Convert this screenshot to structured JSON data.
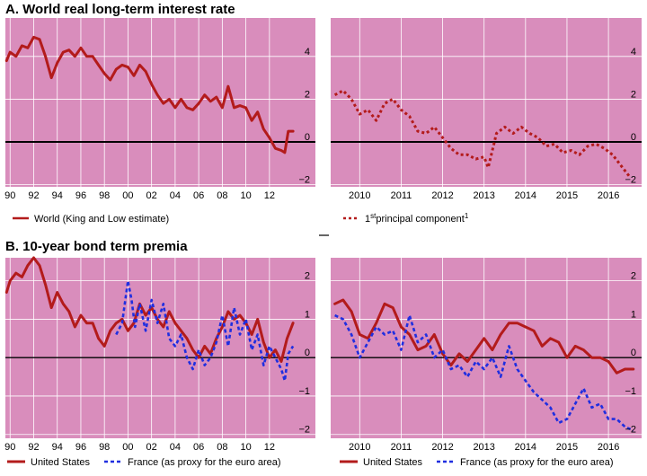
{
  "panel_a": {
    "title": "A. World real long-term interest rate"
  },
  "panel_b": {
    "title": "B. 10-year bond term premia"
  },
  "colors": {
    "plot_bg": "#d98dbc",
    "us_red": "#b31b1b",
    "france_blue": "#1f2ee0",
    "axis": "#000000"
  },
  "chart_data": [
    {
      "type": "line",
      "title": "A. World real long-term interest rate",
      "x_tick_labels": [
        "90",
        "92",
        "94",
        "96",
        "98",
        "00",
        "02",
        "04",
        "06",
        "08",
        "10",
        "12"
      ],
      "x_range": [
        1989.6,
        2015.9
      ],
      "y_tick_labels": [
        "4",
        "2",
        "0",
        "−2"
      ],
      "ylim": [
        -2.1,
        5.8
      ],
      "series": [
        {
          "name": "World (King and Low estimate)",
          "style": "solid",
          "x": [
            1989.7,
            1990.0,
            1990.5,
            1991.0,
            1991.5,
            1992.0,
            1992.5,
            1993.0,
            1993.5,
            1994.0,
            1994.5,
            1995.0,
            1995.5,
            1996.0,
            1996.5,
            1997.0,
            1997.5,
            1998.0,
            1998.5,
            1999.0,
            1999.5,
            2000.0,
            2000.5,
            2001.0,
            2001.5,
            2002.0,
            2002.5,
            2003.0,
            2003.5,
            2004.0,
            2004.5,
            2005.0,
            2005.5,
            2006.0,
            2006.5,
            2007.0,
            2007.5,
            2008.0,
            2008.5,
            2009.0,
            2009.5,
            2010.0,
            2010.5,
            2011.0,
            2011.5,
            2012.0,
            2012.5,
            2013.0,
            2013.3,
            2013.6,
            2014.0
          ],
          "y": [
            3.8,
            4.2,
            4.0,
            4.5,
            4.4,
            4.9,
            4.8,
            4.0,
            3.0,
            3.7,
            4.2,
            4.3,
            4.0,
            4.4,
            4.0,
            4.0,
            3.6,
            3.2,
            2.9,
            3.4,
            3.6,
            3.5,
            3.1,
            3.6,
            3.3,
            2.7,
            2.2,
            1.8,
            2.0,
            1.6,
            2.0,
            1.6,
            1.5,
            1.8,
            2.2,
            1.9,
            2.1,
            1.6,
            2.6,
            1.6,
            1.7,
            1.6,
            1.0,
            1.4,
            0.6,
            0.2,
            -0.3,
            -0.4,
            -0.5,
            0.5,
            0.5
          ]
        }
      ]
    },
    {
      "type": "line",
      "title": "A. World real long-term interest rate",
      "x_tick_labels": [
        "2010",
        "2011",
        "2012",
        "2013",
        "2014",
        "2015",
        "2016"
      ],
      "x_range": [
        2009.3,
        2016.8
      ],
      "y_tick_labels": [
        "4",
        "2",
        "0",
        "−2"
      ],
      "ylim": [
        -2.1,
        5.8
      ],
      "series": [
        {
          "name": "1st principal component1",
          "style": "dashed",
          "x": [
            2009.4,
            2009.6,
            2009.8,
            2010.0,
            2010.2,
            2010.4,
            2010.6,
            2010.8,
            2011.0,
            2011.2,
            2011.4,
            2011.6,
            2011.8,
            2012.0,
            2012.2,
            2012.4,
            2012.6,
            2012.8,
            2013.0,
            2013.1,
            2013.3,
            2013.5,
            2013.7,
            2013.9,
            2014.1,
            2014.3,
            2014.5,
            2014.7,
            2014.9,
            2015.1,
            2015.3,
            2015.5,
            2015.7,
            2015.9,
            2016.1,
            2016.3,
            2016.5
          ],
          "y": [
            2.2,
            2.4,
            2.0,
            1.3,
            1.5,
            1.0,
            1.8,
            2.0,
            1.5,
            1.2,
            0.5,
            0.4,
            0.7,
            0.2,
            -0.3,
            -0.6,
            -0.6,
            -0.8,
            -0.7,
            -1.2,
            0.4,
            0.7,
            0.4,
            0.7,
            0.4,
            0.2,
            -0.2,
            -0.1,
            -0.5,
            -0.4,
            -0.6,
            -0.2,
            -0.1,
            -0.3,
            -0.6,
            -1.1,
            -1.6
          ]
        }
      ]
    },
    {
      "type": "line",
      "title": "B. 10-year bond term premia",
      "x_tick_labels": [
        "90",
        "92",
        "94",
        "96",
        "98",
        "00",
        "02",
        "04",
        "06",
        "08",
        "10",
        "12"
      ],
      "x_range": [
        1989.6,
        2015.9
      ],
      "y_tick_labels": [
        "2",
        "1",
        "0",
        "−1",
        "−2"
      ],
      "ylim": [
        -2.1,
        2.6
      ],
      "series": [
        {
          "name": "United States",
          "style": "solid",
          "x": [
            1989.7,
            1990.0,
            1990.5,
            1991.0,
            1991.5,
            1992.0,
            1992.5,
            1993.0,
            1993.5,
            1994.0,
            1994.5,
            1995.0,
            1995.5,
            1996.0,
            1996.5,
            1997.0,
            1997.5,
            1998.0,
            1998.5,
            1999.0,
            1999.5,
            2000.0,
            2000.5,
            2001.0,
            2001.5,
            2002.0,
            2002.5,
            2003.0,
            2003.5,
            2004.0,
            2004.5,
            2005.0,
            2005.5,
            2006.0,
            2006.5,
            2007.0,
            2007.5,
            2008.0,
            2008.5,
            2009.0,
            2009.5,
            2010.0,
            2010.5,
            2011.0,
            2011.5,
            2012.0,
            2012.5,
            2013.0,
            2013.5,
            2014.0
          ],
          "y": [
            1.7,
            2.0,
            2.2,
            2.1,
            2.4,
            2.6,
            2.4,
            1.9,
            1.3,
            1.7,
            1.4,
            1.2,
            0.8,
            1.1,
            0.9,
            0.9,
            0.5,
            0.3,
            0.7,
            0.9,
            1.0,
            0.7,
            0.9,
            1.4,
            1.1,
            1.3,
            1.0,
            0.8,
            1.2,
            0.9,
            0.7,
            0.5,
            0.2,
            0.0,
            0.3,
            0.1,
            0.5,
            0.8,
            1.2,
            1.0,
            1.1,
            0.9,
            0.6,
            1.0,
            0.4,
            0.0,
            0.2,
            -0.1,
            0.5,
            0.9
          ]
        },
        {
          "name": "France (as proxy for the euro area)",
          "style": "dotted",
          "x": [
            1999.0,
            1999.5,
            2000.0,
            2000.3,
            2000.6,
            2001.0,
            2001.5,
            2002.0,
            2002.5,
            2003.0,
            2003.5,
            2004.0,
            2004.5,
            2005.0,
            2005.5,
            2006.0,
            2006.5,
            2007.0,
            2007.5,
            2008.0,
            2008.5,
            2009.0,
            2009.5,
            2010.0,
            2010.5,
            2011.0,
            2011.5,
            2012.0,
            2012.5,
            2013.0,
            2013.3,
            2013.6,
            2014.0
          ],
          "y": [
            0.6,
            0.9,
            2.0,
            1.5,
            0.8,
            1.4,
            0.7,
            1.5,
            0.9,
            1.4,
            0.5,
            0.3,
            0.6,
            0.0,
            -0.3,
            0.2,
            -0.2,
            0.0,
            0.4,
            1.1,
            0.3,
            1.3,
            0.6,
            1.0,
            0.2,
            0.6,
            -0.2,
            0.3,
            0.0,
            -0.3,
            -0.6,
            0.1,
            0.3
          ]
        }
      ]
    },
    {
      "type": "line",
      "title": "B. 10-year bond term premia",
      "x_tick_labels": [
        "2010",
        "2011",
        "2012",
        "2013",
        "2014",
        "2015",
        "2016"
      ],
      "x_range": [
        2009.3,
        2016.8
      ],
      "y_tick_labels": [
        "2",
        "1",
        "0",
        "−1",
        "−2"
      ],
      "ylim": [
        -2.1,
        2.6
      ],
      "series": [
        {
          "name": "United States",
          "style": "solid",
          "x": [
            2009.4,
            2009.6,
            2009.8,
            2010.0,
            2010.2,
            2010.4,
            2010.6,
            2010.8,
            2011.0,
            2011.2,
            2011.4,
            2011.6,
            2011.8,
            2012.0,
            2012.2,
            2012.4,
            2012.6,
            2012.8,
            2013.0,
            2013.2,
            2013.4,
            2013.6,
            2013.8,
            2014.0,
            2014.2,
            2014.4,
            2014.6,
            2014.8,
            2015.0,
            2015.2,
            2015.4,
            2015.6,
            2015.8,
            2016.0,
            2016.2,
            2016.4,
            2016.6
          ],
          "y": [
            1.4,
            1.5,
            1.2,
            0.6,
            0.5,
            0.9,
            1.4,
            1.3,
            0.8,
            0.6,
            0.2,
            0.3,
            0.6,
            0.1,
            -0.2,
            0.1,
            -0.1,
            0.2,
            0.5,
            0.2,
            0.6,
            0.9,
            0.9,
            0.8,
            0.7,
            0.3,
            0.5,
            0.4,
            0.0,
            0.3,
            0.2,
            0.0,
            0.0,
            -0.1,
            -0.4,
            -0.3,
            -0.3
          ]
        },
        {
          "name": "France (as proxy for the euro area)",
          "style": "dotted",
          "x": [
            2009.4,
            2009.6,
            2009.8,
            2010.0,
            2010.2,
            2010.4,
            2010.6,
            2010.8,
            2011.0,
            2011.2,
            2011.4,
            2011.6,
            2011.8,
            2012.0,
            2012.2,
            2012.4,
            2012.6,
            2012.8,
            2013.0,
            2013.2,
            2013.4,
            2013.6,
            2013.8,
            2014.0,
            2014.2,
            2014.4,
            2014.6,
            2014.8,
            2015.0,
            2015.2,
            2015.4,
            2015.6,
            2015.8,
            2016.0,
            2016.2,
            2016.4,
            2016.6
          ],
          "y": [
            1.1,
            1.0,
            0.6,
            0.0,
            0.4,
            0.8,
            0.6,
            0.7,
            0.2,
            1.1,
            0.4,
            0.6,
            0.0,
            0.2,
            -0.3,
            -0.2,
            -0.5,
            -0.1,
            -0.3,
            0.0,
            -0.5,
            0.3,
            -0.3,
            -0.6,
            -0.9,
            -1.1,
            -1.3,
            -1.7,
            -1.6,
            -1.2,
            -0.8,
            -1.3,
            -1.2,
            -1.6,
            -1.6,
            -1.8,
            -1.9
          ]
        }
      ]
    }
  ],
  "legends": {
    "a_left": [
      "World (King and Low estimate)"
    ],
    "a_right": {
      "pre": "1",
      "sup": "st",
      "main": "principal component",
      "note": "1"
    },
    "b": [
      "United States",
      "France (as proxy for the euro area)"
    ]
  }
}
